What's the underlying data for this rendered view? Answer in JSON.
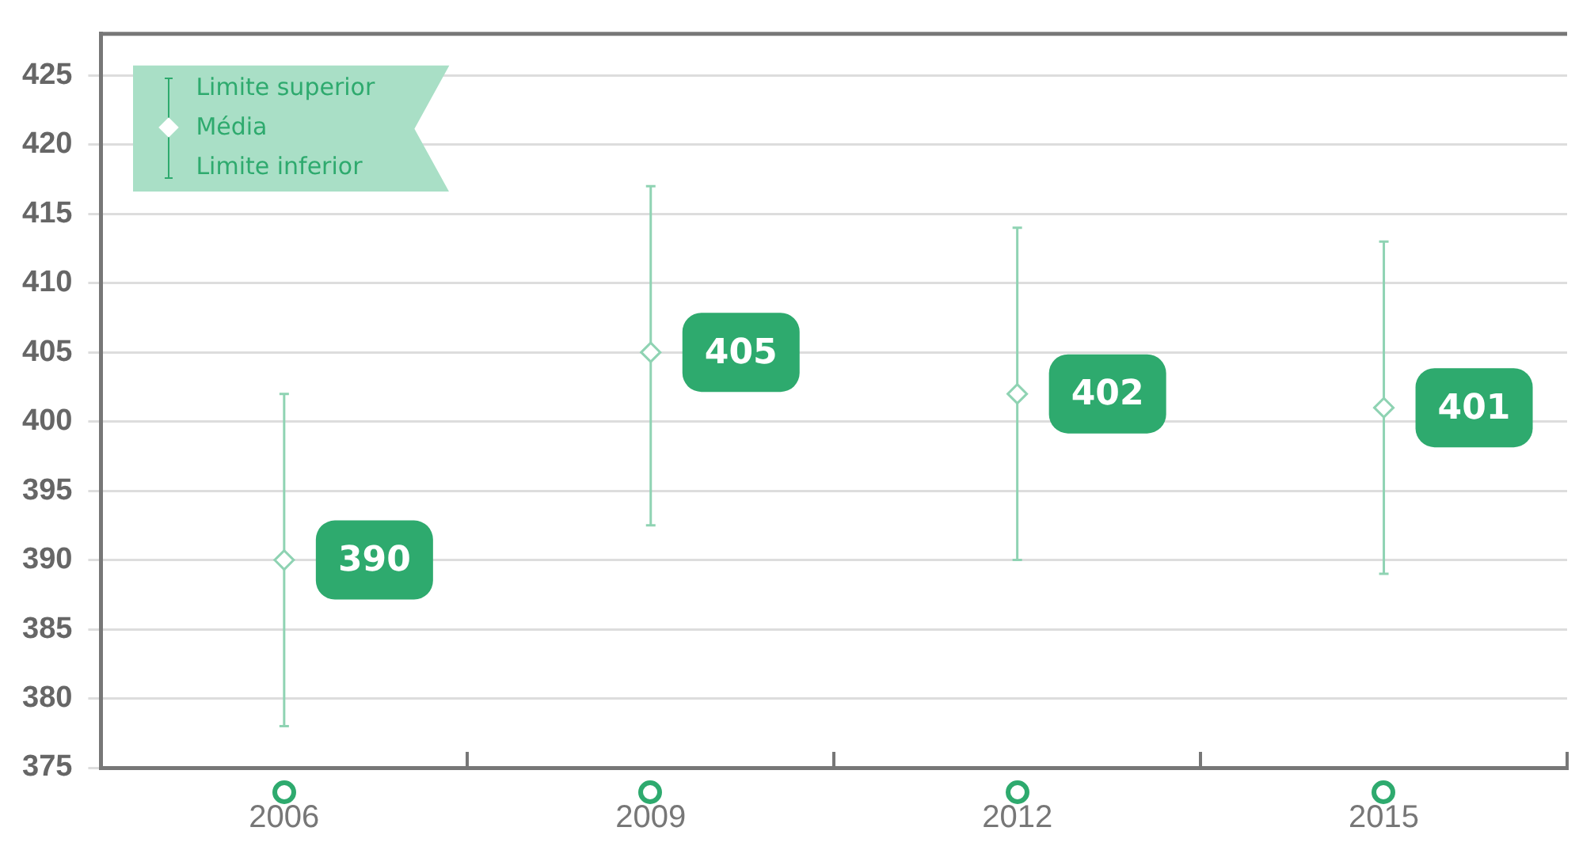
{
  "chart_data": {
    "type": "scatter",
    "categories": [
      "2006",
      "2009",
      "2012",
      "2015"
    ],
    "series": [
      {
        "name": "Média",
        "color": "#8fd3b3",
        "values": [
          390,
          405,
          402,
          401
        ],
        "errors": [
          [
            378,
            402
          ],
          [
            392.5,
            417
          ],
          [
            390,
            414
          ],
          [
            389,
            413
          ]
        ]
      }
    ],
    "annotations": [
      "Limite superior",
      "Limite inferior"
    ],
    "data_labels": true,
    "marker": "diamond",
    "grid": "y",
    "legend": "top left",
    "ylim": [
      375,
      428
    ],
    "yticks": [
      375,
      380,
      385,
      390,
      395,
      400,
      405,
      410,
      415,
      420,
      425
    ]
  }
}
